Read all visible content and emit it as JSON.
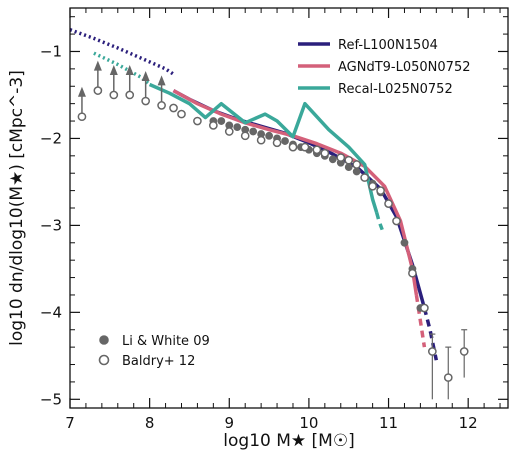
{
  "chart_data": {
    "type": "line",
    "xlabel": "log10 M★ [M☉]",
    "ylabel": "log10 dn/dlog10(M★) [cMpc^-3]",
    "xlim": [
      7,
      12.5
    ],
    "ylim": [
      -5.1,
      -0.5
    ],
    "x_ticks": [
      7,
      8,
      9,
      10,
      11,
      12
    ],
    "y_ticks": [
      -1,
      -2,
      -3,
      -4,
      -5
    ],
    "x_tick_labels": [
      "7",
      "8",
      "9",
      "10",
      "11",
      "12"
    ],
    "y_tick_labels": [
      "−1",
      "−2",
      "−3",
      "−4",
      "−5"
    ],
    "grid": false,
    "legend_position": "top-right",
    "series": [
      {
        "name": "Ref-L100N1504",
        "color": "#2b1f7c",
        "dotted": [
          [
            7.0,
            -0.75
          ],
          [
            7.3,
            -0.85
          ],
          [
            7.6,
            -0.96
          ],
          [
            7.9,
            -1.08
          ],
          [
            8.2,
            -1.2
          ],
          [
            8.3,
            -1.26
          ]
        ],
        "solid": [
          [
            8.3,
            -1.45
          ],
          [
            8.5,
            -1.55
          ],
          [
            8.8,
            -1.68
          ],
          [
            9.1,
            -1.78
          ],
          [
            9.4,
            -1.86
          ],
          [
            9.7,
            -1.94
          ],
          [
            10.0,
            -2.05
          ],
          [
            10.3,
            -2.18
          ],
          [
            10.6,
            -2.33
          ],
          [
            10.9,
            -2.58
          ],
          [
            11.1,
            -2.9
          ],
          [
            11.3,
            -3.45
          ],
          [
            11.45,
            -3.95
          ]
        ],
        "dashed": [
          [
            11.45,
            -3.95
          ],
          [
            11.52,
            -4.2
          ],
          [
            11.6,
            -4.55
          ]
        ]
      },
      {
        "name": "AGNdT9-L050N0752",
        "color": "#d4607a",
        "solid": [
          [
            8.3,
            -1.45
          ],
          [
            8.6,
            -1.6
          ],
          [
            8.9,
            -1.72
          ],
          [
            9.2,
            -1.82
          ],
          [
            9.5,
            -1.9
          ],
          [
            9.8,
            -1.97
          ],
          [
            10.1,
            -2.06
          ],
          [
            10.4,
            -2.17
          ],
          [
            10.7,
            -2.32
          ],
          [
            10.95,
            -2.55
          ],
          [
            11.15,
            -2.95
          ],
          [
            11.3,
            -3.5
          ],
          [
            11.35,
            -3.8
          ]
        ],
        "dashed": [
          [
            11.35,
            -3.8
          ],
          [
            11.4,
            -4.1
          ],
          [
            11.45,
            -4.4
          ]
        ]
      },
      {
        "name": "Recal-L025N0752",
        "color": "#3aa89a",
        "dotted": [
          [
            7.3,
            -1.02
          ],
          [
            7.6,
            -1.15
          ],
          [
            7.9,
            -1.3
          ],
          [
            8.0,
            -1.38
          ]
        ],
        "solid": [
          [
            8.0,
            -1.38
          ],
          [
            8.25,
            -1.48
          ],
          [
            8.5,
            -1.6
          ],
          [
            8.7,
            -1.76
          ],
          [
            8.9,
            -1.6
          ],
          [
            9.2,
            -1.82
          ],
          [
            9.45,
            -1.72
          ],
          [
            9.6,
            -1.8
          ],
          [
            9.8,
            -1.98
          ],
          [
            9.95,
            -1.6
          ],
          [
            10.25,
            -1.9
          ],
          [
            10.5,
            -2.1
          ],
          [
            10.7,
            -2.3
          ],
          [
            10.8,
            -2.7
          ],
          [
            10.85,
            -2.85
          ]
        ],
        "dashed": [
          [
            10.85,
            -2.85
          ],
          [
            10.88,
            -2.95
          ],
          [
            10.92,
            -3.05
          ]
        ]
      }
    ],
    "observations": [
      {
        "name": "Li & White 09",
        "marker": "filled-circle",
        "color": "#666666",
        "points": [
          [
            8.8,
            -1.8
          ],
          [
            8.9,
            -1.8
          ],
          [
            9.0,
            -1.85
          ],
          [
            9.1,
            -1.87
          ],
          [
            9.2,
            -1.9
          ],
          [
            9.3,
            -1.92
          ],
          [
            9.4,
            -1.95
          ],
          [
            9.5,
            -1.97
          ],
          [
            9.6,
            -2.0
          ],
          [
            9.7,
            -2.03
          ],
          [
            9.8,
            -2.07
          ],
          [
            9.9,
            -2.1
          ],
          [
            10.0,
            -2.13
          ],
          [
            10.1,
            -2.17
          ],
          [
            10.2,
            -2.2
          ],
          [
            10.3,
            -2.24
          ],
          [
            10.4,
            -2.28
          ],
          [
            10.5,
            -2.33
          ],
          [
            10.6,
            -2.38
          ],
          [
            10.7,
            -2.45
          ],
          [
            10.8,
            -2.52
          ],
          [
            10.9,
            -2.62
          ],
          [
            11.0,
            -2.75
          ],
          [
            11.1,
            -2.95
          ],
          [
            11.2,
            -3.2
          ],
          [
            11.3,
            -3.5
          ],
          [
            11.4,
            -3.95
          ]
        ]
      },
      {
        "name": "Baldry+ 12",
        "marker": "open-circle",
        "color": "#666666",
        "points": [
          [
            8.3,
            -1.65
          ],
          [
            8.4,
            -1.72
          ],
          [
            8.6,
            -1.8
          ],
          [
            8.8,
            -1.85
          ],
          [
            9.0,
            -1.92
          ],
          [
            9.2,
            -1.97
          ],
          [
            9.4,
            -2.02
          ],
          [
            9.6,
            -2.05
          ],
          [
            9.8,
            -2.1
          ],
          [
            9.95,
            -2.1
          ],
          [
            10.1,
            -2.13
          ],
          [
            10.2,
            -2.17
          ],
          [
            10.4,
            -2.22
          ],
          [
            10.5,
            -2.25
          ],
          [
            10.6,
            -2.3
          ],
          [
            10.7,
            -2.45
          ],
          [
            10.8,
            -2.55
          ],
          [
            10.9,
            -2.6
          ],
          [
            11.0,
            -2.75
          ],
          [
            11.1,
            -2.95
          ],
          [
            11.3,
            -3.55
          ],
          [
            11.45,
            -3.95
          ],
          [
            11.55,
            -4.45
          ],
          [
            11.75,
            -4.75
          ],
          [
            11.95,
            -4.45
          ]
        ],
        "lower_limits": [
          [
            7.15,
            -1.75
          ],
          [
            7.35,
            -1.45
          ],
          [
            7.55,
            -1.5
          ],
          [
            7.75,
            -1.5
          ],
          [
            7.95,
            -1.57
          ],
          [
            8.15,
            -1.62
          ]
        ],
        "error_bars": [
          [
            11.55,
            -4.45,
            -5.0,
            -4.25
          ],
          [
            11.75,
            -4.75,
            -5.0,
            -4.4
          ],
          [
            11.95,
            -4.45,
            -4.75,
            -4.2
          ]
        ]
      }
    ]
  }
}
